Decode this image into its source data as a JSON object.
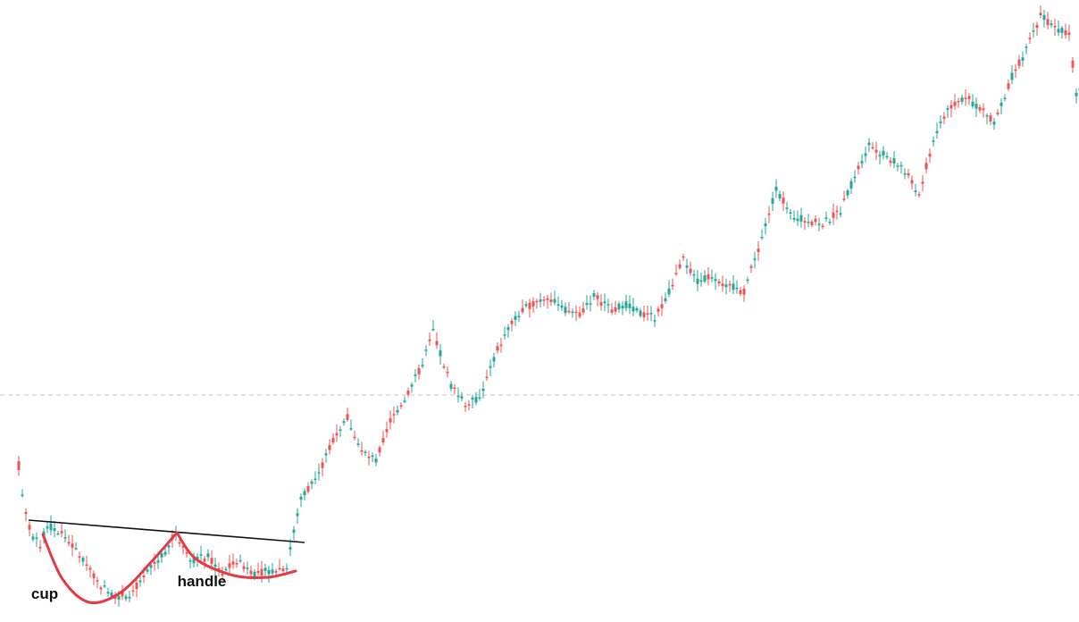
{
  "chart_data": {
    "type": "candlestick",
    "title": "",
    "xlabel": "",
    "ylabel": "",
    "ylim": [
      0,
      696
    ],
    "grid": false,
    "legend": "none",
    "colors": {
      "up": "#26a69a",
      "down": "#ef5350",
      "cup_curve": "#e53945",
      "resistance_line": "#111111",
      "reference_line": "#c7c7c7",
      "background": "#ffffff"
    },
    "reference_level": 254,
    "resistance_line": {
      "start": {
        "x": 32,
        "y": 114
      },
      "end": {
        "x": 341,
        "y": 89
      }
    },
    "annotations": [
      {
        "text": "cup",
        "x": 50,
        "y": 26
      },
      {
        "text": "handle",
        "x": 226,
        "y": 40
      }
    ],
    "cup_curve": [
      [
        48,
        98
      ],
      [
        70,
        48
      ],
      [
        100,
        22
      ],
      [
        135,
        33
      ],
      [
        170,
        68
      ],
      [
        198,
        100
      ]
    ],
    "handle_curve": [
      [
        198,
        100
      ],
      [
        220,
        70
      ],
      [
        262,
        52
      ],
      [
        300,
        50
      ],
      [
        331,
        57
      ]
    ],
    "candles": {
      "spacing": 4,
      "start_x": 21,
      "anchors": [
        [
          0,
          180,
          10,
          170
        ],
        [
          2,
          120,
          25,
          120
        ],
        [
          4,
          100,
          28,
          95
        ],
        [
          6,
          85,
          33,
          85
        ],
        [
          8,
          110,
          40,
          108
        ],
        [
          12,
          100,
          60,
          100
        ],
        [
          18,
          74,
          63,
          70
        ],
        [
          22,
          50,
          40,
          45
        ],
        [
          26,
          34,
          28,
          30
        ],
        [
          31,
          32,
          30,
          30
        ],
        [
          37,
          70,
          35,
          60
        ],
        [
          41,
          85,
          60,
          80
        ],
        [
          44,
          100,
          85,
          100
        ],
        [
          48,
          70,
          85,
          70
        ],
        [
          53,
          72,
          55,
          72
        ],
        [
          57,
          55,
          60,
          55
        ],
        [
          61,
          68,
          52,
          68
        ],
        [
          66,
          62,
          50,
          55
        ],
        [
          70,
          57,
          55,
          57
        ],
        [
          75,
          62,
          60,
          62
        ],
        [
          79,
          102,
          125,
          140
        ],
        [
          84,
          135,
          150,
          165
        ],
        [
          88,
          200,
          190,
          205
        ],
        [
          92,
          220,
          215,
          230
        ],
        [
          96,
          185,
          205,
          190
        ],
        [
          100,
          180,
          175,
          180
        ],
        [
          104,
          230,
          205,
          225
        ],
        [
          108,
          250,
          230,
          250
        ],
        [
          112,
          270,
          275,
          280
        ],
        [
          116,
          310,
          285,
          325
        ],
        [
          121,
          290,
          295,
          265
        ],
        [
          125,
          240,
          260,
          245
        ],
        [
          129,
          255,
          270,
          250
        ],
        [
          134,
          310,
          285,
          305
        ],
        [
          138,
          335,
          310,
          335
        ],
        [
          143,
          360,
          340,
          355
        ],
        [
          148,
          375,
          360,
          365
        ],
        [
          152,
          350,
          360,
          350
        ],
        [
          157,
          370,
          340,
          345
        ],
        [
          161,
          365,
          345,
          365
        ],
        [
          166,
          355,
          340,
          350
        ],
        [
          170,
          350,
          360,
          355
        ],
        [
          174,
          350,
          340,
          345
        ],
        [
          178,
          340,
          350,
          340
        ],
        [
          182,
          360,
          360,
          370
        ],
        [
          186,
          380,
          400,
          405
        ],
        [
          190,
          390,
          375,
          380
        ],
        [
          194,
          380,
          388,
          388
        ],
        [
          199,
          370,
          360,
          375
        ],
        [
          203,
          365,
          360,
          370
        ],
        [
          208,
          410,
          420,
          430
        ],
        [
          212,
          470,
          480,
          485
        ],
        [
          216,
          450,
          455,
          455
        ],
        [
          221,
          470,
          440,
          450
        ],
        [
          225,
          420,
          440,
          445
        ],
        [
          230,
          435,
          420,
          460
        ],
        [
          234,
          480,
          495,
          500
        ],
        [
          238,
          525,
          530,
          535
        ],
        [
          243,
          520,
          520,
          520
        ],
        [
          247,
          500,
          525,
          510
        ],
        [
          252,
          455,
          500,
          478
        ],
        [
          256,
          505,
          540,
          540
        ],
        [
          260,
          550,
          570,
          575
        ],
        [
          265,
          575,
          585,
          588
        ],
        [
          269,
          600,
          590,
          575
        ],
        [
          273,
          550,
          575,
          560
        ],
        [
          278,
          600,
          590,
          610
        ],
        [
          282,
          625,
          640,
          640
        ],
        [
          286,
          660,
          680,
          680
        ],
        [
          290,
          670,
          660,
          665
        ],
        [
          294,
          640,
          640,
          660
        ],
        [
          296,
          625,
          580,
          590
        ],
        [
          300,
          605,
          625,
          610
        ]
      ]
    }
  }
}
